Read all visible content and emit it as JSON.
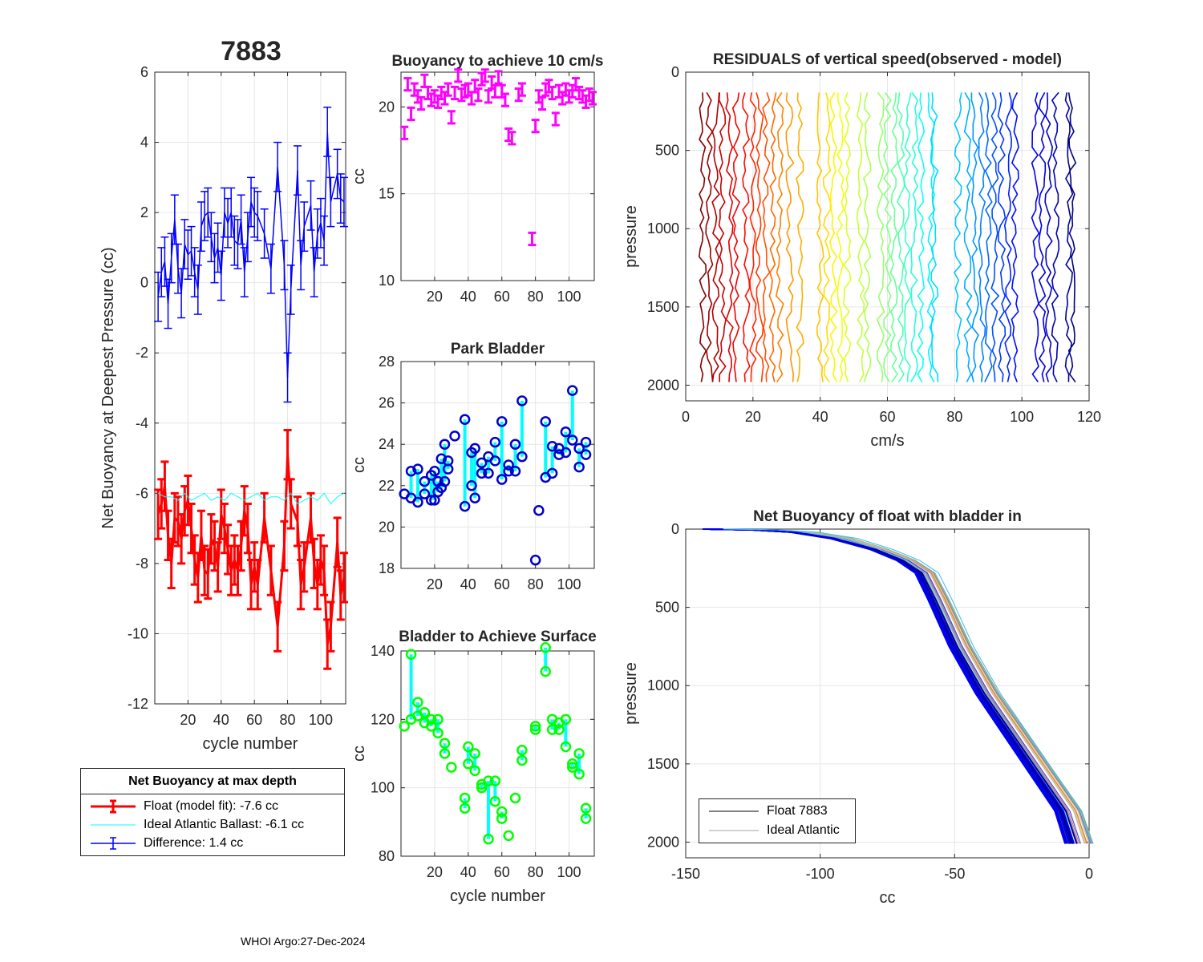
{
  "figure_title": "7883",
  "footer": "WHOI Argo:27-Dec-2024",
  "colors": {
    "red": "#ff0000",
    "blue": "#0000ff",
    "cyan": "#00ffff",
    "magenta": "#ff00ff",
    "green": "#00ff00",
    "darkblue": "#0000cc"
  },
  "legend_main": {
    "title": "Net Buoyancy at max depth",
    "float_label": "Float (model fit):  -7.6 cc",
    "ideal_label": "Ideal Atlantic Ballast:  -6.1 cc",
    "diff_label": "Difference:   1.4 cc"
  },
  "legend_profile": {
    "float_label": "Float 7883",
    "ideal_label": "Ideal Atlantic"
  },
  "chart_data": [
    {
      "id": "main",
      "type": "line",
      "title": "7883",
      "xlabel": "cycle number",
      "ylabel": "Net Buoyancy at Deepest Pressure (cc)",
      "xlim": [
        0,
        115
      ],
      "ylim": [
        -12,
        6
      ],
      "xticks": [
        20,
        40,
        60,
        80,
        100
      ],
      "yticks": [
        6,
        4,
        2,
        0,
        -2,
        -4,
        -6,
        -8,
        -10,
        -12
      ],
      "series": [
        {
          "name": "Float (model fit)",
          "color": "#ff0000",
          "errorbar": true,
          "x": [
            2,
            4,
            6,
            8,
            10,
            12,
            14,
            16,
            18,
            20,
            22,
            24,
            26,
            28,
            30,
            32,
            34,
            36,
            38,
            40,
            42,
            44,
            46,
            48,
            50,
            52,
            54,
            56,
            58,
            60,
            62,
            66,
            70,
            74,
            78,
            80,
            82,
            86,
            88,
            90,
            94,
            96,
            98,
            100,
            102,
            104,
            106,
            110,
            112,
            114
          ],
          "y": [
            -6.6,
            -6.3,
            -5.8,
            -7.2,
            -8.0,
            -6.7,
            -6.8,
            -7.3,
            -6.5,
            -6.2,
            -7.0,
            -7.9,
            -8.4,
            -7.2,
            -8.2,
            -8.3,
            -7.3,
            -7.5,
            -8.1,
            -6.6,
            -7.0,
            -7.6,
            -8.2,
            -7.9,
            -8.2,
            -7.5,
            -6.5,
            -7.0,
            -8.6,
            -8.1,
            -8.6,
            -6.7,
            -8.2,
            -9.8,
            -7.5,
            -4.9,
            -6.3,
            -6.8,
            -8.6,
            -8.1,
            -6.7,
            -8.0,
            -8.6,
            -7.9,
            -8.2,
            -10.3,
            -9.8,
            -7.4,
            -8.9,
            -8.4
          ],
          "err": 0.7
        },
        {
          "name": "Ideal Atlantic Ballast",
          "color": "#00ffff",
          "errorbar": false,
          "x": [
            2,
            6,
            10,
            14,
            18,
            22,
            26,
            30,
            34,
            38,
            42,
            46,
            50,
            54,
            58,
            62,
            66,
            70,
            74,
            78,
            82,
            86,
            90,
            94,
            98,
            102,
            106,
            110,
            114
          ],
          "y": [
            -6.0,
            -6.1,
            -6.1,
            -6.2,
            -6.0,
            -6.2,
            -6.1,
            -6.0,
            -6.2,
            -6.1,
            -6.2,
            -6.0,
            -6.1,
            -6.2,
            -6.1,
            -6.0,
            -6.2,
            -6.1,
            -6.1,
            -6.2,
            -6.0,
            -6.3,
            -6.2,
            -6.1,
            -6.2,
            -6.0,
            -6.3,
            -6.1,
            -6.0
          ],
          "err": 0
        },
        {
          "name": "Difference",
          "color": "#0000ff",
          "errorbar": true,
          "x": [
            2,
            4,
            6,
            8,
            10,
            12,
            14,
            16,
            18,
            20,
            22,
            24,
            26,
            28,
            30,
            32,
            34,
            36,
            38,
            40,
            42,
            44,
            46,
            48,
            50,
            52,
            54,
            56,
            58,
            60,
            62,
            66,
            70,
            74,
            78,
            80,
            82,
            86,
            88,
            90,
            94,
            96,
            98,
            100,
            102,
            104,
            106,
            110,
            112,
            114
          ],
          "y": [
            -0.4,
            0.3,
            0.6,
            -0.6,
            0.7,
            1.8,
            0.4,
            -0.3,
            1.1,
            0.8,
            0.9,
            0.3,
            -0.2,
            1.6,
            1.9,
            2.0,
            1.3,
            0.7,
            1.0,
            0.2,
            2.0,
            1.7,
            2.0,
            1.2,
            1.1,
            1.8,
            0.3,
            1.3,
            2.3,
            2.0,
            1.9,
            1.4,
            0.4,
            3.3,
            0.5,
            -2.7,
            -0.2,
            3.2,
            0.5,
            1.6,
            2.2,
            0.3,
            1.4,
            1.7,
            1.2,
            4.3,
            2.3,
            3.1,
            2.4,
            2.3
          ],
          "err": 0.7
        }
      ]
    },
    {
      "id": "buoyancy10",
      "type": "scatter",
      "title": "Buoyancy to achieve 10 cm/s",
      "xlabel": "",
      "ylabel": "cc",
      "xlim": [
        0,
        115
      ],
      "ylim": [
        10,
        22
      ],
      "xticks": [
        20,
        40,
        60,
        80,
        100
      ],
      "yticks": [
        20,
        15,
        10
      ],
      "errorbar": true,
      "color": "#ff00ff",
      "err": 0.35,
      "x": [
        2,
        4,
        6,
        8,
        10,
        12,
        14,
        16,
        18,
        20,
        22,
        24,
        26,
        28,
        30,
        32,
        34,
        36,
        38,
        40,
        42,
        44,
        46,
        48,
        50,
        52,
        54,
        56,
        58,
        60,
        62,
        64,
        66,
        70,
        72,
        78,
        80,
        82,
        84,
        86,
        88,
        90,
        92,
        94,
        96,
        98,
        100,
        102,
        104,
        106,
        108,
        110,
        112,
        114
      ],
      "y": [
        18.5,
        21.3,
        19.6,
        21.0,
        20.6,
        20.2,
        21.5,
        20.8,
        20.4,
        20.6,
        20.3,
        20.8,
        20.5,
        21.0,
        19.4,
        20.8,
        21.8,
        20.7,
        20.9,
        21.0,
        20.5,
        21.2,
        20.7,
        21.6,
        21.8,
        20.6,
        21.4,
        20.9,
        21.7,
        20.9,
        20.4,
        18.4,
        18.2,
        20.7,
        21.0,
        12.4,
        18.9,
        20.6,
        20.2,
        21.0,
        21.2,
        20.8,
        19.3,
        20.9,
        20.5,
        21.0,
        20.6,
        20.9,
        21.3,
        20.8,
        20.6,
        20.3,
        20.7,
        20.5
      ]
    },
    {
      "id": "parkbladder",
      "type": "scatter",
      "title": "Park Bladder",
      "xlabel": "",
      "ylabel": "cc",
      "xlim": [
        0,
        115
      ],
      "ylim": [
        18,
        28
      ],
      "xticks": [
        20,
        40,
        60,
        80,
        100
      ],
      "yticks": [
        28,
        26,
        24,
        22,
        20,
        18
      ],
      "marker_color": "#0000cc",
      "line_color": "#00ffff",
      "pairs": [
        [
          2,
          21.6,
          21.6
        ],
        [
          6,
          22.7,
          21.4
        ],
        [
          10,
          22.8,
          21.2
        ],
        [
          14,
          22.2,
          21.6
        ],
        [
          18,
          22.5,
          21.3
        ],
        [
          20,
          22.7,
          21.3
        ],
        [
          22,
          22.2,
          21.7
        ],
        [
          24,
          23.3,
          21.9
        ],
        [
          26,
          24.0,
          22.2
        ],
        [
          28,
          23.2,
          22.8
        ],
        [
          32,
          24.4,
          24.4
        ],
        [
          38,
          25.2,
          21.0
        ],
        [
          42,
          23.6,
          22.0
        ],
        [
          44,
          23.8,
          21.4
        ],
        [
          48,
          23.1,
          22.6
        ],
        [
          52,
          23.4,
          22.6
        ],
        [
          56,
          24.1,
          23.2
        ],
        [
          60,
          25.1,
          22.3
        ],
        [
          64,
          23.0,
          22.7
        ],
        [
          68,
          24.0,
          22.7
        ],
        [
          72,
          26.1,
          23.4
        ],
        [
          80,
          18.4,
          18.4
        ],
        [
          82,
          20.8,
          20.8
        ],
        [
          86,
          25.1,
          22.4
        ],
        [
          90,
          23.9,
          22.6
        ],
        [
          94,
          23.8,
          23.5
        ],
        [
          98,
          24.6,
          23.6
        ],
        [
          102,
          26.6,
          24.2
        ],
        [
          106,
          23.8,
          22.9
        ],
        [
          110,
          24.1,
          23.5
        ]
      ]
    },
    {
      "id": "surfacebladder",
      "type": "scatter",
      "title": "Bladder to Achieve Surface",
      "xlabel": "cycle number",
      "ylabel": "cc",
      "xlim": [
        0,
        115
      ],
      "ylim": [
        80,
        140
      ],
      "xticks": [
        20,
        40,
        60,
        80,
        100
      ],
      "yticks": [
        140,
        120,
        100,
        80
      ],
      "marker_color": "#00ff00",
      "line_color": "#00ffff",
      "pairs": [
        [
          2,
          118,
          118
        ],
        [
          6,
          139,
          120
        ],
        [
          10,
          125,
          121
        ],
        [
          14,
          122,
          119
        ],
        [
          18,
          120,
          118
        ],
        [
          22,
          120,
          116
        ],
        [
          26,
          113,
          110
        ],
        [
          30,
          106,
          106
        ],
        [
          38,
          97,
          94
        ],
        [
          40,
          112,
          107
        ],
        [
          44,
          110,
          105
        ],
        [
          48,
          101,
          100
        ],
        [
          52,
          102,
          85
        ],
        [
          56,
          102,
          96
        ],
        [
          60,
          93,
          91
        ],
        [
          64,
          86,
          86
        ],
        [
          68,
          97,
          97
        ],
        [
          72,
          111,
          108
        ],
        [
          80,
          118,
          117
        ],
        [
          86,
          141,
          134
        ],
        [
          90,
          120,
          117
        ],
        [
          94,
          119,
          117
        ],
        [
          98,
          120,
          112
        ],
        [
          102,
          107,
          106
        ],
        [
          106,
          110,
          104
        ],
        [
          110,
          94,
          91
        ]
      ]
    },
    {
      "id": "residuals",
      "type": "line",
      "title": "RESIDUALS of vertical speed(observed - model)",
      "xlabel": "cm/s",
      "ylabel": "pressure",
      "xlim": [
        0,
        120
      ],
      "ylim": [
        0,
        2100
      ],
      "xticks": [
        0,
        20,
        40,
        60,
        80,
        100,
        120
      ],
      "yticks": [
        0,
        500,
        1000,
        1500,
        2000
      ],
      "profile_offsets": [
        5,
        7,
        9,
        11,
        13,
        15,
        18,
        20,
        22,
        24,
        26,
        28,
        31,
        34,
        40,
        42,
        44,
        46,
        48,
        52,
        54,
        58,
        60,
        62,
        64,
        66,
        68,
        70,
        73,
        74,
        81,
        84,
        86,
        88,
        90,
        92,
        94,
        96,
        98,
        104,
        106,
        108,
        110,
        114,
        115
      ],
      "pressure_top": 130,
      "pressure_bottom": 2000
    },
    {
      "id": "netbuoyancy_profile",
      "type": "line",
      "title": "Net Buoyancy of float with bladder in",
      "xlabel": "cc",
      "ylabel": "pressure",
      "xlim": [
        -150,
        0
      ],
      "ylim": [
        0,
        2100
      ],
      "xticks": [
        -150,
        -100,
        -50,
        0
      ],
      "yticks": [
        0,
        500,
        1000,
        1500,
        2000
      ],
      "float_profile": {
        "cc": [
          -143,
          -125,
          -110,
          -95,
          -80,
          -70,
          -63,
          -58,
          -50,
          -40,
          -30,
          -20,
          -10,
          -6
        ],
        "pressure": [
          0,
          5,
          20,
          60,
          130,
          200,
          280,
          450,
          750,
          1050,
          1300,
          1550,
          1800,
          2010
        ]
      },
      "ideal_profile": {
        "cc": [
          -140,
          -120,
          -105,
          -90,
          -77,
          -67,
          -60,
          -55,
          -47,
          -37,
          -27,
          -17,
          -7,
          -3
        ],
        "pressure": [
          0,
          5,
          20,
          60,
          130,
          200,
          280,
          450,
          750,
          1050,
          1300,
          1550,
          1800,
          2010
        ]
      }
    }
  ]
}
